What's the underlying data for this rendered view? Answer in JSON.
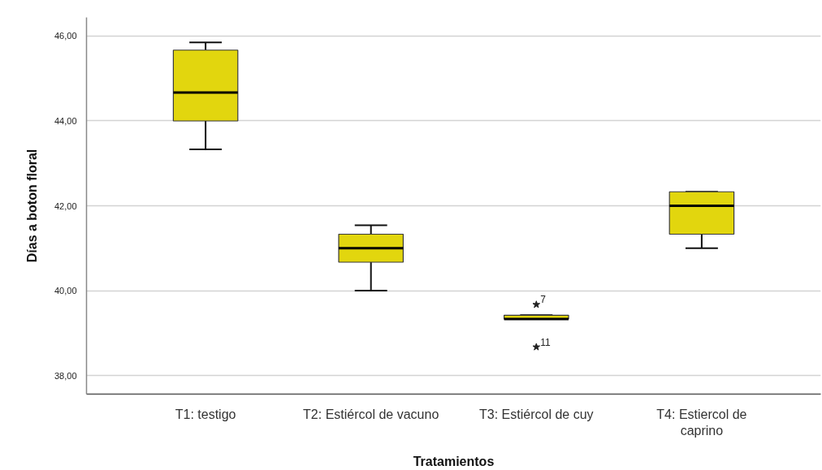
{
  "chart_data": {
    "type": "box",
    "xlabel": "Tratamientos",
    "ylabel": "Días a boton floral",
    "categories": [
      "T1: testigo",
      "T2: Estiércol de vacuno",
      "T3: Estiércol de cuy",
      "T4: Estiercol de caprino"
    ],
    "series": [
      {
        "color": "#e2d60e",
        "boxes": [
          {
            "low": 43.33,
            "q1": 44.0,
            "median": 44.67,
            "q3": 45.67,
            "high": 45.85
          },
          {
            "low": 40.0,
            "q1": 40.67,
            "median": 41.0,
            "q3": 41.33,
            "high": 41.54
          },
          {
            "low": 39.33,
            "q1": 39.33,
            "median": 39.33,
            "q3": 39.42,
            "high": 39.42
          },
          {
            "low": 41.0,
            "q1": 41.33,
            "median": 42.0,
            "q3": 42.33,
            "high": 42.33
          }
        ]
      },
      {
        "type": "scatter",
        "color": "#222222",
        "x": [
          "T3: Estiércol de cuy",
          "T3: Estiércol de cuy"
        ],
        "values": [
          39.67,
          38.67
        ]
      }
    ],
    "annotations": [
      {
        "text": "7",
        "x": "T3: Estiércol de cuy",
        "y": 39.67
      },
      {
        "text": "11",
        "x": "T3: Estiércol de cuy",
        "y": 38.67
      }
    ],
    "ylim": [
      37.56,
      46.44
    ],
    "yticks": [
      {
        "value": 38,
        "label": "38,00"
      },
      {
        "value": 40,
        "label": "40,00"
      },
      {
        "value": 42,
        "label": "42,00"
      },
      {
        "value": 44,
        "label": "44,00"
      },
      {
        "value": 46,
        "label": "46,00"
      }
    ],
    "grid": "y",
    "marker": "star"
  }
}
